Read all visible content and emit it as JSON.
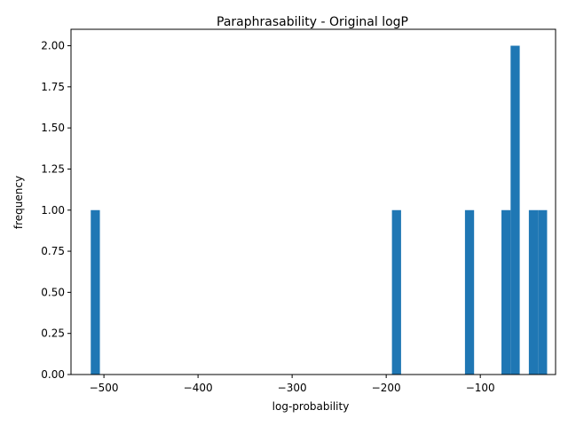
{
  "chart_data": {
    "type": "bar",
    "title": "Paraphrasability - Original logP",
    "xlabel": "log-probability",
    "ylabel": "frequency",
    "xlim": [
      -535,
      -20
    ],
    "ylim": [
      0,
      2.1
    ],
    "x_ticks": [
      -500,
      -400,
      -300,
      -200,
      -100
    ],
    "x_tick_labels": [
      "−500",
      "−400",
      "−300",
      "−200",
      "−100"
    ],
    "y_ticks": [
      0,
      0.25,
      0.5,
      0.75,
      1.0,
      1.25,
      1.5,
      1.75,
      2.0
    ],
    "y_tick_labels": [
      "0.00",
      "0.25",
      "0.50",
      "0.75",
      "1.00",
      "1.25",
      "1.50",
      "1.75",
      "2.00"
    ],
    "bin_width": 9.7,
    "bars": [
      {
        "x_start": -514.0,
        "x_end": -504.3,
        "count": 1
      },
      {
        "x_start": -193.9,
        "x_end": -184.2,
        "count": 1
      },
      {
        "x_start": -116.3,
        "x_end": -106.6,
        "count": 1
      },
      {
        "x_start": -77.5,
        "x_end": -67.8,
        "count": 1
      },
      {
        "x_start": -67.8,
        "x_end": -58.1,
        "count": 2
      },
      {
        "x_start": -48.4,
        "x_end": -38.7,
        "count": 1
      },
      {
        "x_start": -38.7,
        "x_end": -29.0,
        "count": 1
      }
    ],
    "grid": false,
    "legend": "none",
    "bar_color": "#1f77b4"
  }
}
